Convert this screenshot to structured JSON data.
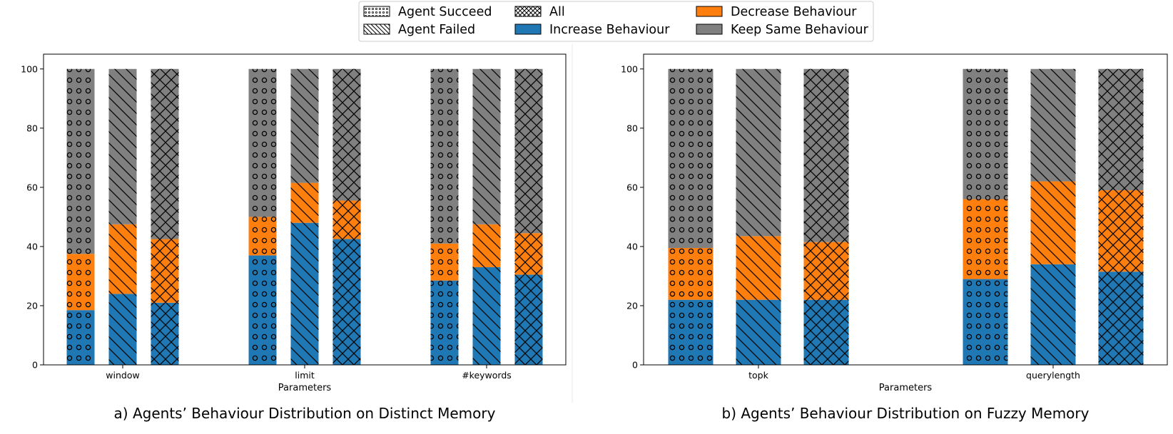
{
  "colors": {
    "increase": "#1f77b4",
    "decrease": "#ff7f0e",
    "keep": "#808080",
    "edge": "#000000"
  },
  "legend": {
    "placement": "top-center",
    "items": [
      {
        "label": "Agent Succeed",
        "kind": "hatch",
        "hatch": "dots"
      },
      {
        "label": "Agent Failed",
        "kind": "hatch",
        "hatch": "diag"
      },
      {
        "label": "All",
        "kind": "hatch",
        "hatch": "cross"
      },
      {
        "label": "Increase Behaviour",
        "kind": "color",
        "color": "#1f77b4"
      },
      {
        "label": "Decrease Behaviour",
        "kind": "color",
        "color": "#ff7f0e"
      },
      {
        "label": "Keep Same Behaviour",
        "kind": "color",
        "color": "#808080"
      }
    ]
  },
  "chart_data": [
    {
      "type": "bar",
      "stacked": true,
      "caption": "a) Agents’ Behaviour Distribution on Distinct Memory",
      "xlabel": "Parameters",
      "ylabel": "",
      "ylim": [
        0,
        105
      ],
      "yticks": [
        0,
        20,
        40,
        60,
        80,
        100
      ],
      "grid": false,
      "categories": [
        "window",
        "limit",
        "#keywords"
      ],
      "groups": [
        "Agent Succeed",
        "Agent Failed",
        "All"
      ],
      "stack_order": [
        "Increase Behaviour",
        "Decrease Behaviour",
        "Keep Same Behaviour"
      ],
      "values": {
        "window": {
          "Agent Succeed": [
            18.5,
            19.0,
            62.5
          ],
          "Agent Failed": [
            24.0,
            23.5,
            52.5
          ],
          "All": [
            21.0,
            21.5,
            57.5
          ]
        },
        "limit": {
          "Agent Succeed": [
            37.0,
            13.0,
            50.0
          ],
          "Agent Failed": [
            48.0,
            13.5,
            38.5
          ],
          "All": [
            42.5,
            13.0,
            44.5
          ]
        },
        "#keywords": {
          "Agent Succeed": [
            28.5,
            12.5,
            59.0
          ],
          "Agent Failed": [
            33.0,
            14.5,
            52.5
          ],
          "All": [
            30.5,
            14.0,
            55.5
          ]
        }
      }
    },
    {
      "type": "bar",
      "stacked": true,
      "caption": "b) Agents’ Behaviour Distribution on Fuzzy Memory",
      "xlabel": "Parameters",
      "ylabel": "",
      "ylim": [
        0,
        105
      ],
      "yticks": [
        0,
        20,
        40,
        60,
        80,
        100
      ],
      "grid": false,
      "categories": [
        "topk",
        "querylength"
      ],
      "groups": [
        "Agent Succeed",
        "Agent Failed",
        "All"
      ],
      "stack_order": [
        "Increase Behaviour",
        "Decrease Behaviour",
        "Keep Same Behaviour"
      ],
      "values": {
        "topk": {
          "Agent Succeed": [
            22.0,
            17.5,
            60.5
          ],
          "Agent Failed": [
            22.0,
            21.5,
            56.5
          ],
          "All": [
            22.0,
            19.5,
            58.5
          ]
        },
        "querylength": {
          "Agent Succeed": [
            29.0,
            27.0,
            44.0
          ],
          "Agent Failed": [
            34.0,
            28.0,
            38.0
          ],
          "All": [
            31.5,
            27.5,
            41.0
          ]
        }
      }
    }
  ]
}
